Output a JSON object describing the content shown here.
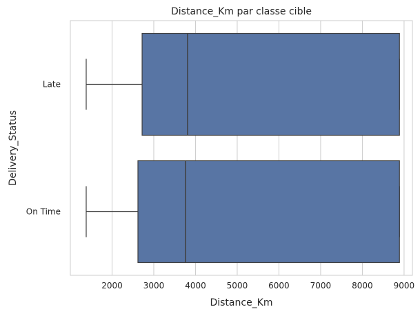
{
  "chart_data": {
    "type": "boxplot",
    "orientation": "horizontal",
    "title": "Distance_Km par classe cible",
    "xlabel": "Distance_Km",
    "ylabel": "Delivery_Status",
    "xlim": [
      1000,
      9200
    ],
    "xticks": [
      2000,
      3000,
      4000,
      5000,
      6000,
      7000,
      8000,
      9000
    ],
    "categories": [
      "Late",
      "On Time"
    ],
    "boxes": [
      {
        "category": "Late",
        "whisker_low": 1380,
        "q1": 2720,
        "median": 3810,
        "q3": 8890,
        "whisker_high": 8890
      },
      {
        "category": "On Time",
        "whisker_low": 1380,
        "q1": 2620,
        "median": 3760,
        "q3": 8890,
        "whisker_high": 8890
      }
    ],
    "grid": "x",
    "colors": {
      "box_fill": "#5875a4",
      "box_edge": "#3f3f3f",
      "grid": "#cccccc",
      "frame": "#cccccc",
      "text": "#262626"
    }
  }
}
